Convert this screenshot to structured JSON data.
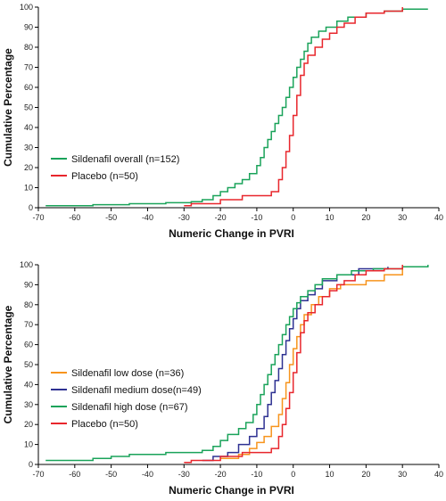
{
  "chart_data": [
    {
      "type": "line",
      "step": true,
      "xlabel": "Numeric Change in PVRI",
      "ylabel": "Cumulative Percentage",
      "xlim": [
        -70,
        40
      ],
      "ylim": [
        0,
        100
      ],
      "xticks": [
        -70,
        -60,
        -50,
        -40,
        -30,
        -20,
        -10,
        0,
        10,
        20,
        30,
        40
      ],
      "yticks": [
        0,
        10,
        20,
        30,
        40,
        50,
        60,
        70,
        80,
        90,
        100
      ],
      "legend_position": "left",
      "series": [
        {
          "name": "Sildenafil overall (n=152)",
          "color": "#1aa35a",
          "points": [
            [
              -68,
              1
            ],
            [
              -55,
              1.5
            ],
            [
              -45,
              2
            ],
            [
              -35,
              2.5
            ],
            [
              -28,
              3
            ],
            [
              -25,
              4
            ],
            [
              -22,
              6
            ],
            [
              -20,
              8
            ],
            [
              -18,
              10
            ],
            [
              -16,
              12
            ],
            [
              -14,
              14
            ],
            [
              -12,
              17
            ],
            [
              -10,
              21
            ],
            [
              -9,
              25
            ],
            [
              -8,
              30
            ],
            [
              -7,
              34
            ],
            [
              -6,
              38
            ],
            [
              -5,
              42
            ],
            [
              -4,
              46
            ],
            [
              -3,
              50
            ],
            [
              -2,
              55
            ],
            [
              -1,
              60
            ],
            [
              0,
              65
            ],
            [
              1,
              70
            ],
            [
              2,
              74
            ],
            [
              3,
              78
            ],
            [
              4,
              82
            ],
            [
              5,
              85
            ],
            [
              7,
              88
            ],
            [
              9,
              90
            ],
            [
              12,
              93
            ],
            [
              15,
              95
            ],
            [
              20,
              97
            ],
            [
              25,
              98
            ],
            [
              30,
              99
            ],
            [
              37,
              99
            ]
          ]
        },
        {
          "name": "Placebo (n=50)",
          "color": "#e8262c",
          "points": [
            [
              -30,
              1
            ],
            [
              -28,
              2
            ],
            [
              -20,
              4
            ],
            [
              -14,
              6
            ],
            [
              -6,
              8
            ],
            [
              -4,
              14
            ],
            [
              -3,
              20
            ],
            [
              -2,
              28
            ],
            [
              -1,
              36
            ],
            [
              0,
              46
            ],
            [
              1,
              56
            ],
            [
              2,
              66
            ],
            [
              3,
              72
            ],
            [
              4,
              76
            ],
            [
              6,
              80
            ],
            [
              8,
              84
            ],
            [
              10,
              87
            ],
            [
              12,
              90
            ],
            [
              14,
              92
            ],
            [
              17,
              95
            ],
            [
              20,
              97
            ],
            [
              25,
              98
            ],
            [
              30,
              100
            ]
          ]
        }
      ]
    },
    {
      "type": "line",
      "step": true,
      "xlabel": "Numeric Change in PVRI",
      "ylabel": "Cumulative Percentage",
      "xlim": [
        -70,
        40
      ],
      "ylim": [
        0,
        100
      ],
      "xticks": [
        -70,
        -60,
        -50,
        -40,
        -30,
        -20,
        -10,
        0,
        10,
        20,
        30,
        40
      ],
      "yticks": [
        0,
        10,
        20,
        30,
        40,
        50,
        60,
        70,
        80,
        90,
        100
      ],
      "legend_position": "left",
      "series": [
        {
          "name": "Sildenafil low dose (n=36)",
          "color": "#f7941d",
          "points": [
            [
              -20,
              3
            ],
            [
              -15,
              5
            ],
            [
              -12,
              8
            ],
            [
              -10,
              11
            ],
            [
              -8,
              14
            ],
            [
              -6,
              19
            ],
            [
              -4,
              25
            ],
            [
              -3,
              33
            ],
            [
              -2,
              41
            ],
            [
              -1,
              50
            ],
            [
              0,
              58
            ],
            [
              1,
              64
            ],
            [
              2,
              70
            ],
            [
              3,
              75
            ],
            [
              5,
              80
            ],
            [
              7,
              84
            ],
            [
              10,
              88
            ],
            [
              13,
              90
            ],
            [
              20,
              92
            ],
            [
              25,
              95
            ],
            [
              30,
              98
            ]
          ]
        },
        {
          "name": "Sildenafil medium dose(n=49)",
          "color": "#2e3192",
          "points": [
            [
              -25,
              2
            ],
            [
              -22,
              4
            ],
            [
              -18,
              6
            ],
            [
              -15,
              10
            ],
            [
              -12,
              14
            ],
            [
              -10,
              18
            ],
            [
              -8,
              24
            ],
            [
              -7,
              30
            ],
            [
              -6,
              36
            ],
            [
              -5,
              42
            ],
            [
              -4,
              48
            ],
            [
              -3,
              55
            ],
            [
              -2,
              62
            ],
            [
              -1,
              68
            ],
            [
              0,
              73
            ],
            [
              1,
              78
            ],
            [
              2,
              82
            ],
            [
              4,
              85
            ],
            [
              6,
              88
            ],
            [
              8,
              92
            ],
            [
              12,
              95
            ],
            [
              18,
              98
            ],
            [
              26,
              99
            ]
          ]
        },
        {
          "name": "Sildenafil high dose (n=67)",
          "color": "#1aa35a",
          "points": [
            [
              -68,
              2
            ],
            [
              -55,
              3
            ],
            [
              -50,
              4
            ],
            [
              -45,
              5
            ],
            [
              -35,
              6
            ],
            [
              -25,
              7
            ],
            [
              -22,
              9
            ],
            [
              -20,
              12
            ],
            [
              -18,
              15
            ],
            [
              -15,
              18
            ],
            [
              -13,
              21
            ],
            [
              -11,
              25
            ],
            [
              -10,
              30
            ],
            [
              -9,
              35
            ],
            [
              -8,
              40
            ],
            [
              -7,
              45
            ],
            [
              -6,
              50
            ],
            [
              -5,
              55
            ],
            [
              -4,
              60
            ],
            [
              -3,
              65
            ],
            [
              -2,
              70
            ],
            [
              -1,
              74
            ],
            [
              0,
              78
            ],
            [
              1,
              81
            ],
            [
              2,
              84
            ],
            [
              4,
              87
            ],
            [
              6,
              90
            ],
            [
              8,
              93
            ],
            [
              12,
              95
            ],
            [
              16,
              97
            ],
            [
              22,
              98
            ],
            [
              30,
              99
            ],
            [
              37,
              100
            ]
          ]
        },
        {
          "name": "Placebo (n=50)",
          "color": "#e8262c",
          "points": [
            [
              -30,
              1
            ],
            [
              -28,
              2
            ],
            [
              -20,
              4
            ],
            [
              -14,
              6
            ],
            [
              -6,
              8
            ],
            [
              -4,
              14
            ],
            [
              -3,
              20
            ],
            [
              -2,
              28
            ],
            [
              -1,
              36
            ],
            [
              0,
              46
            ],
            [
              1,
              56
            ],
            [
              2,
              66
            ],
            [
              3,
              72
            ],
            [
              4,
              76
            ],
            [
              6,
              80
            ],
            [
              8,
              84
            ],
            [
              10,
              87
            ],
            [
              12,
              90
            ],
            [
              14,
              92
            ],
            [
              17,
              95
            ],
            [
              20,
              97
            ],
            [
              25,
              98
            ],
            [
              30,
              100
            ]
          ]
        }
      ]
    }
  ]
}
